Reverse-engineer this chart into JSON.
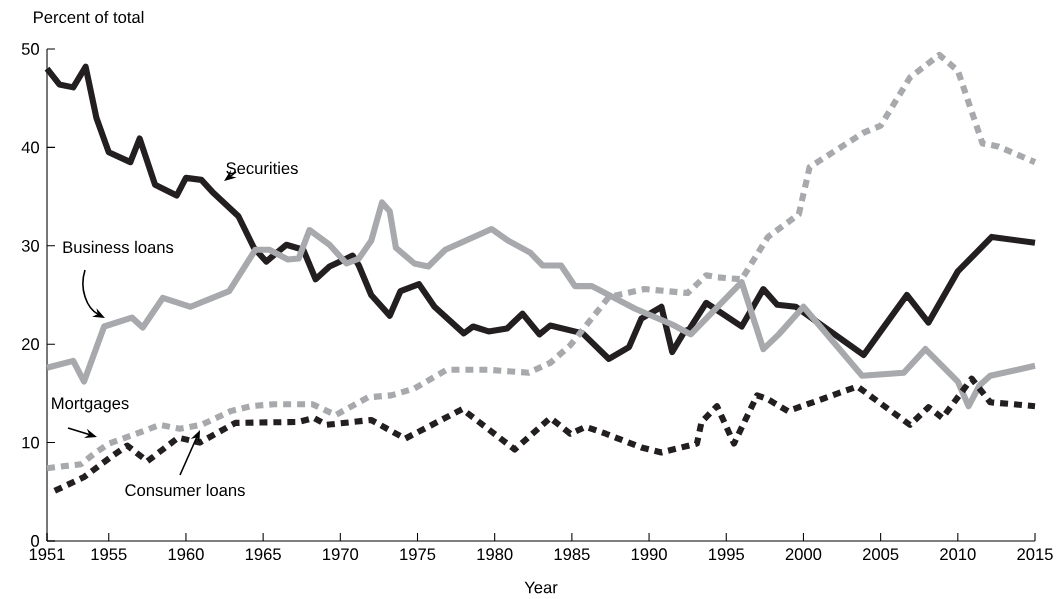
{
  "chart_data": {
    "type": "line",
    "xlabel": "Year",
    "ylabel": "Percent of total",
    "xlim": [
      1951,
      2015
    ],
    "xticks": [
      1951,
      1955,
      1960,
      1965,
      1970,
      1975,
      1980,
      1985,
      1990,
      1995,
      2000,
      2005,
      2010,
      2015
    ],
    "ylim": [
      0,
      50
    ],
    "yticks": [
      0,
      10,
      20,
      30,
      40,
      50
    ],
    "grid": false,
    "marker": "none",
    "series": [
      {
        "name": "Securities",
        "color": "#231f20",
        "line_style": "solid",
        "x": [
          1951,
          1951.8,
          1952.7,
          1953.5,
          1954.2,
          1955,
          1956.4,
          1957,
          1958,
          1959.4,
          1960,
          1961,
          1961.7,
          1963.4,
          1964.4,
          1965.2,
          1966.5,
          1967.6,
          1968.4,
          1969.3,
          1970.8,
          1971.2,
          1972,
          1973.2,
          1973.9,
          1975.1,
          1976.1,
          1978,
          1978.6,
          1979.6,
          1980.8,
          1981.8,
          1982.9,
          1983.6,
          1985.7,
          1987.4,
          1988.7,
          1989.5,
          1990.8,
          1991.5,
          1992.3,
          1992.6,
          1993.7,
          1996,
          1997.4,
          1998.3,
          1999.5,
          2003.9,
          2005,
          2006.7,
          2008.1,
          2010,
          2012.2,
          2015
        ],
        "values": [
          48.0,
          46.4,
          46.1,
          48.2,
          43.0,
          39.5,
          38.5,
          40.9,
          36.2,
          35.1,
          36.9,
          36.7,
          35.5,
          33.0,
          29.8,
          28.4,
          30.1,
          29.6,
          26.6,
          27.9,
          29.0,
          28.0,
          25.0,
          22.9,
          25.4,
          26.1,
          23.8,
          21.1,
          21.8,
          21.3,
          21.6,
          23.1,
          21.0,
          21.9,
          21.1,
          18.5,
          19.7,
          22.6,
          23.8,
          19.2,
          21.3,
          21.5,
          24.2,
          21.8,
          25.6,
          24.0,
          23.8,
          18.9,
          21.3,
          25.0,
          22.2,
          27.4,
          30.9,
          30.3
        ]
      },
      {
        "name": "Business loans",
        "color": "#a7a9ac",
        "line_style": "solid",
        "x": [
          1951,
          1952.7,
          1953.4,
          1954.7,
          1956.5,
          1957.2,
          1958.5,
          1960.3,
          1962.8,
          1964.5,
          1965.4,
          1966.6,
          1967.3,
          1968,
          1969.3,
          1970.4,
          1971.2,
          1972,
          1972.7,
          1973.2,
          1973.6,
          1974.8,
          1975.7,
          1976.8,
          1979.8,
          1980.9,
          1982.3,
          1983.1,
          1984.3,
          1985.2,
          1986.3,
          1989.1,
          1991.5,
          1992.7,
          1996,
          1997.4,
          1998.4,
          2000,
          2003.8,
          2006.5,
          2007.9,
          2010,
          2010.7,
          2011.4,
          2012.1,
          2015
        ],
        "values": [
          17.6,
          18.3,
          16.2,
          21.8,
          22.7,
          21.7,
          24.7,
          23.8,
          25.4,
          29.6,
          29.6,
          28.6,
          28.7,
          31.6,
          30.1,
          28.2,
          28.7,
          30.5,
          34.4,
          33.5,
          29.8,
          28.2,
          27.9,
          29.6,
          31.7,
          30.5,
          29.3,
          28.0,
          28.0,
          25.9,
          25.9,
          23.6,
          22.0,
          21.0,
          26.3,
          19.5,
          21.0,
          23.8,
          16.8,
          17.1,
          19.5,
          16.2,
          13.7,
          15.8,
          16.8,
          17.8
        ]
      },
      {
        "name": "Mortgages",
        "color": "#a7a9ac",
        "line_style": "dotted",
        "x": [
          1951,
          1953.2,
          1954,
          1955,
          1956.8,
          1958.3,
          1959.6,
          1961,
          1962.9,
          1964.2,
          1965.7,
          1968.2,
          1969.7,
          1971.8,
          1973.3,
          1974.8,
          1976.9,
          1979.6,
          1982.2,
          1983.6,
          1984.9,
          1987.4,
          1989.7,
          1992.5,
          1993.7,
          1994.4,
          1996,
          1997.7,
          1999.7,
          2000.4,
          2003.9,
          2005,
          2006.9,
          2008.8,
          2010,
          2011.6,
          2012.6,
          2015
        ],
        "values": [
          7.4,
          7.8,
          8.8,
          9.9,
          10.9,
          11.8,
          11.4,
          11.8,
          13.2,
          13.7,
          13.9,
          13.9,
          12.8,
          14.6,
          14.8,
          15.5,
          17.4,
          17.4,
          17.1,
          18.1,
          19.9,
          24.8,
          25.6,
          25.2,
          27.0,
          26.8,
          26.6,
          30.9,
          33.2,
          38.0,
          41.5,
          42.2,
          47.1,
          49.4,
          47.8,
          40.4,
          40.1,
          38.5
        ]
      },
      {
        "name": "Consumer loans",
        "color": "#231f20",
        "line_style": "dotted",
        "x": [
          1951.5,
          1953.4,
          1955.2,
          1956.2,
          1957.5,
          1959.5,
          1960.9,
          1963.2,
          1967.3,
          1968.3,
          1969.1,
          1972,
          1974.2,
          1977.9,
          1981.3,
          1983.6,
          1984.9,
          1985.9,
          1987.2,
          1989.5,
          1990.8,
          1993.1,
          1993.4,
          1994.4,
          1995.5,
          1997,
          1997.7,
          1999,
          2003.5,
          2006.9,
          2008.1,
          2009,
          2010.9,
          2012.1,
          2015
        ],
        "values": [
          5.1,
          6.5,
          8.6,
          9.7,
          8.1,
          10.5,
          10.0,
          12.0,
          12.1,
          12.5,
          11.8,
          12.3,
          10.4,
          13.4,
          9.3,
          12.5,
          10.9,
          11.6,
          10.9,
          9.5,
          9.0,
          9.9,
          12.1,
          13.7,
          9.9,
          14.8,
          14.4,
          13.2,
          15.7,
          11.8,
          13.6,
          12.5,
          16.5,
          14.1,
          13.7
        ]
      }
    ]
  }
}
